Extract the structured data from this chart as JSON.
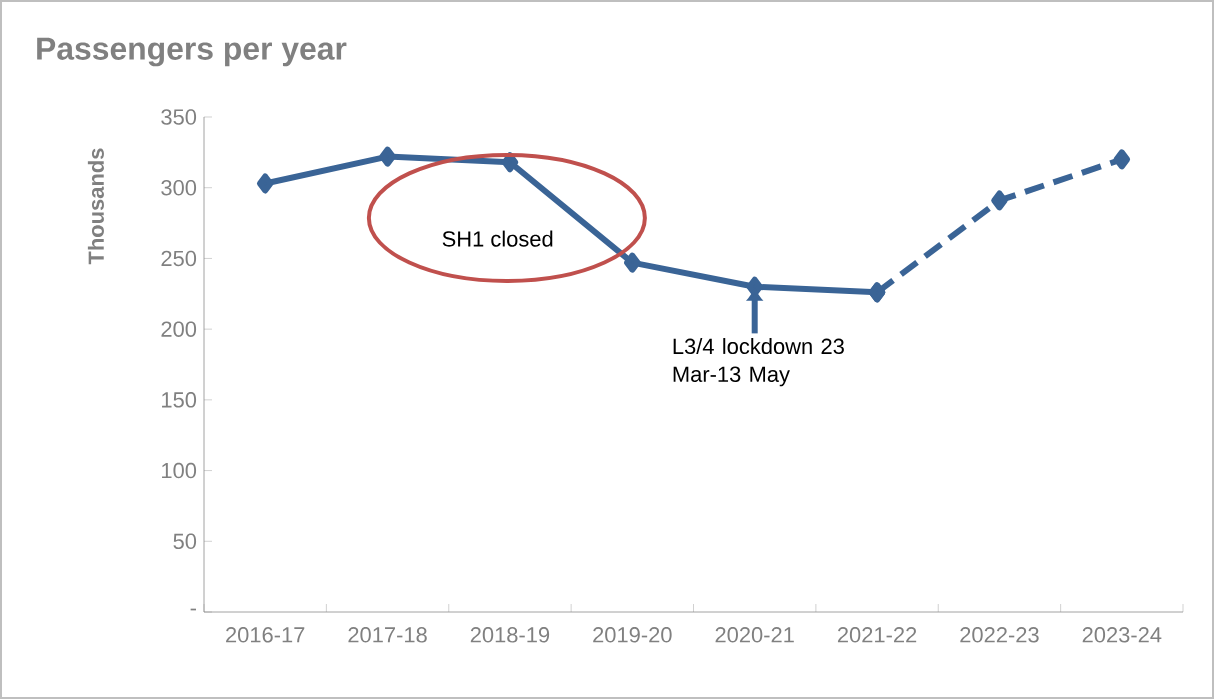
{
  "chart_data": {
    "type": "line",
    "title": "Passengers per year",
    "ylabel": "Thousands",
    "categories": [
      "2016-17",
      "2017-18",
      "2018-19",
      "2019-20",
      "2020-21",
      "2021-22",
      "2022-23",
      "2023-24"
    ],
    "series": [
      {
        "color": "#3a6496",
        "line_style": "solid",
        "values": [
          303,
          322,
          318,
          247,
          230,
          226,
          null,
          null
        ]
      },
      {
        "color": "#3a6496",
        "line_style": "dashed",
        "values": [
          null,
          null,
          null,
          null,
          null,
          226,
          291,
          320
        ]
      }
    ],
    "ylim": [
      0,
      350
    ],
    "yticks": [
      {
        "value": 0,
        "label": "-"
      },
      50,
      100,
      150,
      200,
      250,
      300,
      350
    ],
    "marker": "diamond",
    "annotations": [
      "SH1 closed",
      {
        "text": "L3/4 lockdown 23 Mar-13 May",
        "x": "2020-21",
        "y": 230
      }
    ]
  }
}
